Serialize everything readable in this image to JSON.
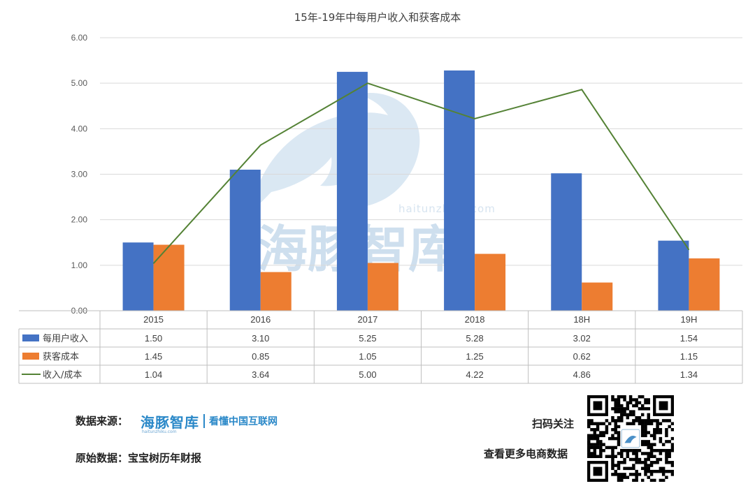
{
  "chart_data": {
    "type": "bar",
    "title": "15年-19年中每用户收入和获客成本",
    "categories": [
      "2015",
      "2016",
      "2017",
      "2018",
      "18H",
      "19H"
    ],
    "ylim": [
      0,
      6
    ],
    "yticks": [
      "0.00",
      "1.00",
      "2.00",
      "3.00",
      "4.00",
      "5.00",
      "6.00"
    ],
    "grid": true,
    "legend": "data-table",
    "series": [
      {
        "name": "每用户收入",
        "kind": "bar",
        "color": "#4472c4",
        "values": [
          1.5,
          3.1,
          5.25,
          5.28,
          3.02,
          1.54
        ],
        "labels": [
          "1.50",
          "3.10",
          "5.25",
          "5.28",
          "3.02",
          "1.54"
        ]
      },
      {
        "name": "获客成本",
        "kind": "bar",
        "color": "#ed7d31",
        "values": [
          1.45,
          0.85,
          1.05,
          1.25,
          0.62,
          1.15
        ],
        "labels": [
          "1.45",
          "0.85",
          "1.05",
          "1.25",
          "0.62",
          "1.15"
        ]
      },
      {
        "name": "收入/成本",
        "kind": "line",
        "color": "#548235",
        "values": [
          1.04,
          3.64,
          5.0,
          4.22,
          4.86,
          1.34
        ],
        "labels": [
          "1.04",
          "3.64",
          "5.00",
          "4.22",
          "4.86",
          "1.34"
        ]
      }
    ]
  },
  "watermark": {
    "name": "海豚智库",
    "url": "haitunzhiku.com"
  },
  "footer": {
    "source_label": "数据来源：",
    "brand_name": "海豚智库",
    "brand_slogan": "看懂中国互联网",
    "brand_url": "haitunzhiku.com",
    "origin_label": "原始数据：宝宝树历年财报",
    "scan_label": "扫码关注",
    "more_label": "查看更多电商数据"
  }
}
